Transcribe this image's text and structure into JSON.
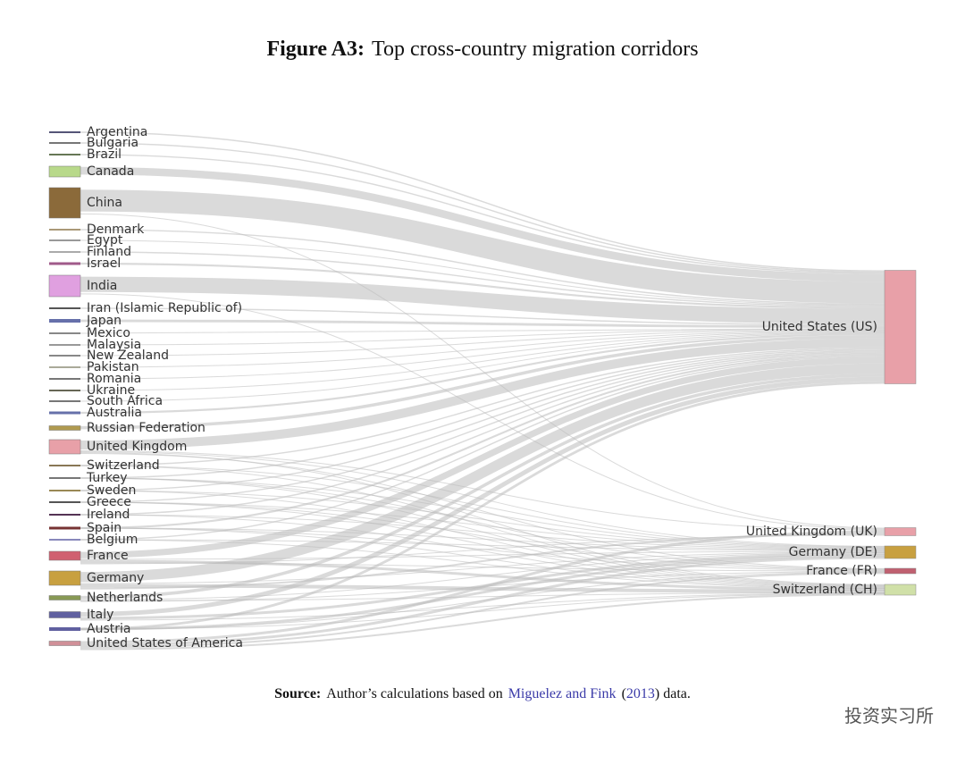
{
  "title": {
    "label": "Figure A3:",
    "text": "Top cross-country migration corridors"
  },
  "origins": [
    "Argentina",
    "Bulgaria",
    "Brazil",
    "Canada",
    "China",
    "Denmark",
    "Egypt",
    "Finland",
    "Israel",
    "India",
    "Iran (Islamic Republic of)",
    "Japan",
    "Mexico",
    "Malaysia",
    "New Zealand",
    "Pakistan",
    "Romania",
    "Ukraine",
    "South Africa",
    "Australia",
    "Russian Federation",
    "United Kingdom",
    "Switzerland",
    "Turkey",
    "Sweden",
    "Greece",
    "Ireland",
    "Spain",
    "Belgium",
    "France",
    "Germany",
    "Netherlands",
    "Italy",
    "Austria",
    "United States of America"
  ],
  "destinations": [
    "United States (US)",
    "United Kingdom (UK)",
    "Germany (DE)",
    "France (FR)",
    "Switzerland (CH)"
  ],
  "caption": {
    "label": "Source:",
    "text": "Author’s calculations based on",
    "reference": "Miguelez and Fink",
    "open": "(",
    "year": "2013",
    "close": ") data."
  },
  "watermark": "投资实习所"
}
